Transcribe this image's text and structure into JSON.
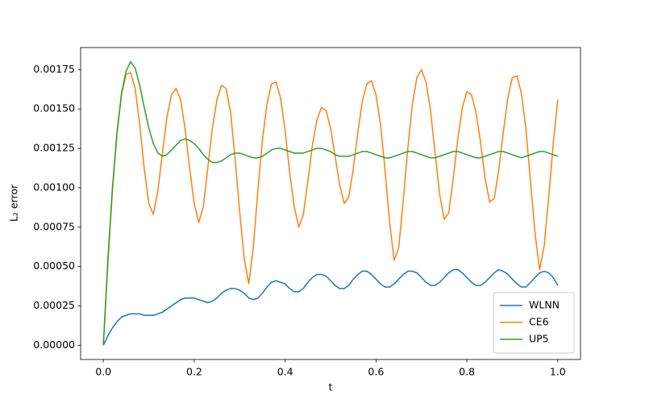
{
  "chart_data": {
    "type": "line",
    "x_label": "t",
    "y_label": "L₂ error",
    "x": [
      0,
      0.01,
      0.02,
      0.03,
      0.04,
      0.05,
      0.06,
      0.07,
      0.08,
      0.09,
      0.1,
      0.11,
      0.12,
      0.13,
      0.14,
      0.15,
      0.16,
      0.17,
      0.18,
      0.19,
      0.2,
      0.21,
      0.22,
      0.23,
      0.24,
      0.25,
      0.26,
      0.27,
      0.28,
      0.29,
      0.3,
      0.31,
      0.32,
      0.33,
      0.34,
      0.35,
      0.36,
      0.37,
      0.38,
      0.39,
      0.4,
      0.41,
      0.42,
      0.43,
      0.44,
      0.45,
      0.46,
      0.47,
      0.48,
      0.49,
      0.5,
      0.51,
      0.52,
      0.53,
      0.54,
      0.55,
      0.56,
      0.57,
      0.58,
      0.59,
      0.6,
      0.61,
      0.62,
      0.63,
      0.64,
      0.65,
      0.66,
      0.67,
      0.68,
      0.69,
      0.7,
      0.71,
      0.72,
      0.73,
      0.74,
      0.75,
      0.76,
      0.77,
      0.78,
      0.79,
      0.8,
      0.81,
      0.82,
      0.83,
      0.84,
      0.85,
      0.86,
      0.87,
      0.88,
      0.89,
      0.9,
      0.91,
      0.92,
      0.93,
      0.94,
      0.95,
      0.96,
      0.97,
      0.98,
      0.99,
      1
    ],
    "series": [
      {
        "name": "WLNN",
        "color": "#1f77b4",
        "values": [
          0,
          6e-05,
          0.00011,
          0.00015,
          0.00018,
          0.00019,
          0.0002,
          0.0002,
          0.0002,
          0.00019,
          0.00019,
          0.00019,
          0.0002,
          0.00021,
          0.00023,
          0.00025,
          0.00027,
          0.00029,
          0.0003,
          0.0003,
          0.0003,
          0.00029,
          0.00028,
          0.00027,
          0.00028,
          0.0003,
          0.00033,
          0.00035,
          0.00036,
          0.00036,
          0.00035,
          0.00033,
          0.0003,
          0.00029,
          0.0003,
          0.00033,
          0.00037,
          0.0004,
          0.00041,
          0.0004,
          0.00039,
          0.00036,
          0.00034,
          0.00034,
          0.00036,
          0.0004,
          0.00043,
          0.00045,
          0.00045,
          0.00044,
          0.00041,
          0.00038,
          0.00036,
          0.00036,
          0.00038,
          0.00042,
          0.00045,
          0.00047,
          0.00047,
          0.00045,
          0.00042,
          0.00039,
          0.00037,
          0.00037,
          0.00039,
          0.00042,
          0.00045,
          0.00047,
          0.00047,
          0.00046,
          0.00043,
          0.0004,
          0.00038,
          0.00038,
          0.0004,
          0.00043,
          0.00046,
          0.00048,
          0.00048,
          0.00046,
          0.00043,
          0.0004,
          0.00038,
          0.00038,
          0.0004,
          0.00043,
          0.00046,
          0.00048,
          0.00047,
          0.00045,
          0.00042,
          0.00039,
          0.00037,
          0.00037,
          0.0004,
          0.00043,
          0.00046,
          0.00047,
          0.00046,
          0.00043,
          0.00038
        ]
      },
      {
        "name": "CE6",
        "color": "#ff7f0e",
        "values": [
          0,
          0.00052,
          0.00098,
          0.00134,
          0.00159,
          0.00172,
          0.00173,
          0.00163,
          0.0014,
          0.00112,
          0.0009,
          0.00083,
          0.00098,
          0.00122,
          0.00145,
          0.00159,
          0.00163,
          0.00156,
          0.00137,
          0.00112,
          0.0009,
          0.00078,
          0.00088,
          0.00113,
          0.00138,
          0.00156,
          0.00165,
          0.00163,
          0.00148,
          0.00118,
          0.00085,
          0.00055,
          0.00039,
          0.00062,
          0.00098,
          0.0013,
          0.00153,
          0.00166,
          0.00167,
          0.00157,
          0.00136,
          0.0011,
          0.00088,
          0.00075,
          0.00083,
          0.00104,
          0.00127,
          0.00143,
          0.00151,
          0.00149,
          0.00138,
          0.0012,
          0.00102,
          0.0009,
          0.00094,
          0.00112,
          0.00135,
          0.00155,
          0.00166,
          0.00168,
          0.00159,
          0.0014,
          0.00111,
          0.00078,
          0.00054,
          0.00062,
          0.00092,
          0.00125,
          0.00153,
          0.0017,
          0.00175,
          0.00167,
          0.00149,
          0.00122,
          0.00096,
          0.0008,
          0.00084,
          0.00106,
          0.00131,
          0.00151,
          0.00161,
          0.00159,
          0.00148,
          0.00129,
          0.00106,
          0.00091,
          0.00093,
          0.00111,
          0.00135,
          0.00157,
          0.0017,
          0.00171,
          0.0016,
          0.00137,
          0.00104,
          0.00071,
          0.00048,
          0.00063,
          0.00094,
          0.00128,
          0.00156
        ]
      },
      {
        "name": "UP5",
        "color": "#2ca02c",
        "values": [
          0,
          0.00055,
          0.001,
          0.00135,
          0.0016,
          0.00174,
          0.0018,
          0.00176,
          0.00165,
          0.00151,
          0.00138,
          0.00128,
          0.00122,
          0.0012,
          0.00121,
          0.00124,
          0.00127,
          0.0013,
          0.00131,
          0.0013,
          0.00128,
          0.00125,
          0.00121,
          0.00118,
          0.00116,
          0.00116,
          0.00117,
          0.00119,
          0.00121,
          0.00122,
          0.00122,
          0.00121,
          0.0012,
          0.00119,
          0.00119,
          0.0012,
          0.00122,
          0.00124,
          0.00125,
          0.00125,
          0.00124,
          0.00123,
          0.00122,
          0.00122,
          0.00122,
          0.00123,
          0.00124,
          0.00125,
          0.00125,
          0.00124,
          0.00123,
          0.00121,
          0.0012,
          0.0012,
          0.0012,
          0.00121,
          0.00122,
          0.00123,
          0.00123,
          0.00122,
          0.00121,
          0.0012,
          0.00119,
          0.00119,
          0.0012,
          0.00121,
          0.00122,
          0.00123,
          0.00123,
          0.00122,
          0.00121,
          0.0012,
          0.00119,
          0.00119,
          0.0012,
          0.00121,
          0.00122,
          0.00123,
          0.00123,
          0.00122,
          0.00121,
          0.0012,
          0.00119,
          0.00119,
          0.0012,
          0.00121,
          0.00122,
          0.00123,
          0.00123,
          0.00122,
          0.00121,
          0.0012,
          0.00119,
          0.0012,
          0.00121,
          0.00122,
          0.00123,
          0.00123,
          0.00122,
          0.00121,
          0.0012
        ]
      }
    ],
    "xlim": [
      -0.05,
      1.05
    ],
    "ylim": [
      -9e-05,
      0.00189
    ],
    "xticks": [
      {
        "value": 0,
        "label": "0.0"
      },
      0.2,
      0.4,
      0.6,
      0.8,
      {
        "value": 1,
        "label": "1.0"
      }
    ],
    "yticks": [
      {
        "value": 0,
        "label": "0.00000"
      },
      {
        "value": 0.00025,
        "label": "0.00025"
      },
      {
        "value": 0.0005,
        "label": "0.00050"
      },
      {
        "value": 0.00075,
        "label": "0.00075"
      },
      {
        "value": 0.001,
        "label": "0.00100"
      },
      {
        "value": 0.00125,
        "label": "0.00125"
      },
      {
        "value": 0.0015,
        "label": "0.00150"
      },
      {
        "value": 0.00175,
        "label": "0.00175"
      }
    ],
    "grid": false,
    "legend": "lower right"
  }
}
